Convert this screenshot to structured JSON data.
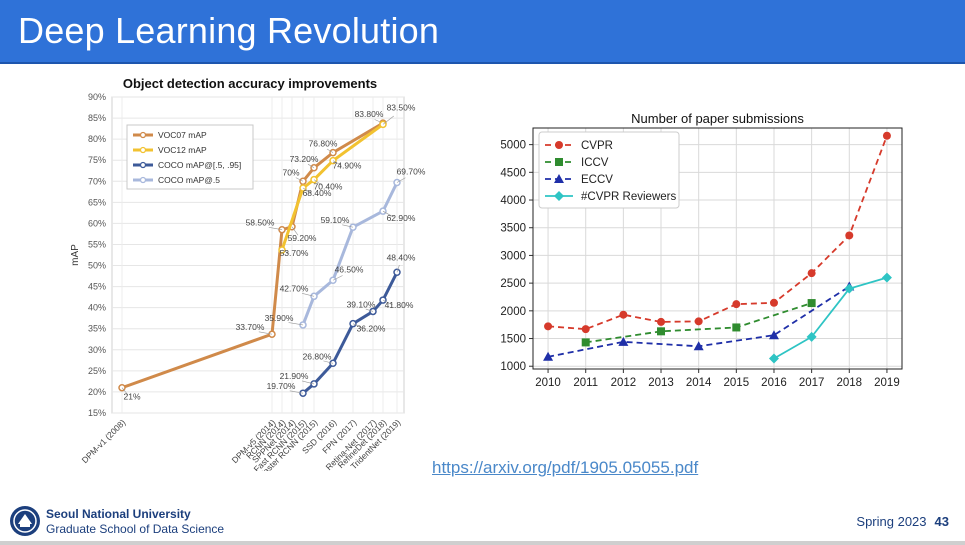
{
  "slide": {
    "title": "Deep Learning Revolution",
    "link": "https://arxiv.org/pdf/1905.05055.pdf",
    "footer": {
      "university": "Seoul National University",
      "school": "Graduate School of Data Science",
      "term": "Spring 2023",
      "page": "43"
    },
    "colors": {
      "header": "#2f72d8",
      "footer_text": "#1c3f7d"
    }
  },
  "chart_data": [
    {
      "type": "line",
      "title": "Object detection accuracy improvements",
      "ylabel": "mAP",
      "xlabel": "",
      "ylim": [
        15,
        90
      ],
      "yticks": [
        "15%",
        "20%",
        "25%",
        "30%",
        "35%",
        "40%",
        "45%",
        "50%",
        "55%",
        "60%",
        "65%",
        "70%",
        "75%",
        "80%",
        "85%",
        "90%"
      ],
      "categories": [
        "DPM-v1 (2008)",
        "DPM-v5 (2014)",
        "RCNN (2014)",
        "SPPNet (2014)",
        "Fast RCNN (2015)",
        "Faster RCNN (2015)",
        "SSD (2016)",
        "FPN (2017)",
        "Retina-Net (2017)",
        "RefineDet (2018)",
        "TridentNet (2019)"
      ],
      "legend_position": "top-left",
      "grid": true,
      "series": [
        {
          "name": "VOC07 mAP",
          "color": "#d08a4a",
          "values": [
            21,
            33.7,
            58.5,
            59.2,
            70,
            73.2,
            76.8,
            null,
            null,
            83.8,
            null
          ],
          "labels": [
            "21%",
            "33.70%",
            "58.50%",
            "59.20%",
            "70%",
            "73.20%",
            "76.80%",
            null,
            null,
            "83.80%",
            null
          ]
        },
        {
          "name": "VOC12 mAP",
          "color": "#f2c230",
          "values": [
            null,
            null,
            53.7,
            null,
            68.4,
            70.4,
            74.9,
            null,
            null,
            83.5,
            null
          ],
          "labels": [
            null,
            null,
            "53.70%",
            null,
            "68.40%",
            "70.40%",
            "74.90%",
            null,
            null,
            "83.50%",
            null
          ]
        },
        {
          "name": "COCO mAP@[.5, .95]",
          "color": "#3d5a99",
          "values": [
            null,
            null,
            null,
            null,
            19.7,
            21.9,
            26.8,
            36.2,
            39.1,
            41.8,
            48.4
          ],
          "labels": [
            null,
            null,
            null,
            null,
            "19.70%",
            "21.90%",
            "26.80%",
            "36.20%",
            "39.10%",
            "41.80%",
            "48.40%"
          ]
        },
        {
          "name": "COCO mAP@.5",
          "color": "#a8b8dc",
          "values": [
            null,
            null,
            null,
            null,
            35.9,
            42.7,
            46.5,
            59.1,
            null,
            62.9,
            69.7
          ],
          "labels": [
            null,
            null,
            null,
            null,
            "35.90%",
            "42.70%",
            "46.50%",
            "59.10%",
            null,
            "62.90%",
            "69.70%"
          ]
        }
      ]
    },
    {
      "type": "line",
      "title": "Number of paper submissions",
      "xlabel": "",
      "ylabel": "",
      "x": [
        2010,
        2011,
        2012,
        2013,
        2014,
        2015,
        2016,
        2017,
        2018,
        2019
      ],
      "xlim": [
        2009.6,
        2019.4
      ],
      "ylim": [
        950,
        5300
      ],
      "yticks": [
        1000,
        1500,
        2000,
        2500,
        3000,
        3500,
        4000,
        4500,
        5000
      ],
      "legend_position": "top-left",
      "grid": true,
      "series": [
        {
          "name": "CVPR",
          "color": "#d63a2b",
          "marker": "circle",
          "dash": true,
          "values": [
            1720,
            1670,
            1930,
            1800,
            1810,
            2120,
            2145,
            2680,
            3360,
            5160
          ]
        },
        {
          "name": "ICCV",
          "color": "#2f8c2f",
          "marker": "square",
          "dash": true,
          "values": [
            null,
            1430,
            null,
            1630,
            null,
            1700,
            null,
            2140,
            null,
            null
          ]
        },
        {
          "name": "ECCV",
          "color": "#1f2fa8",
          "marker": "triangle",
          "dash": true,
          "values": [
            1170,
            null,
            1440,
            null,
            1360,
            null,
            1560,
            null,
            2440,
            null
          ]
        },
        {
          "name": "#CVPR Reviewers",
          "color": "#2ec4c4",
          "marker": "diamond",
          "dash": false,
          "values": [
            null,
            null,
            null,
            null,
            null,
            null,
            1140,
            1530,
            2400,
            2600
          ]
        }
      ]
    }
  ]
}
